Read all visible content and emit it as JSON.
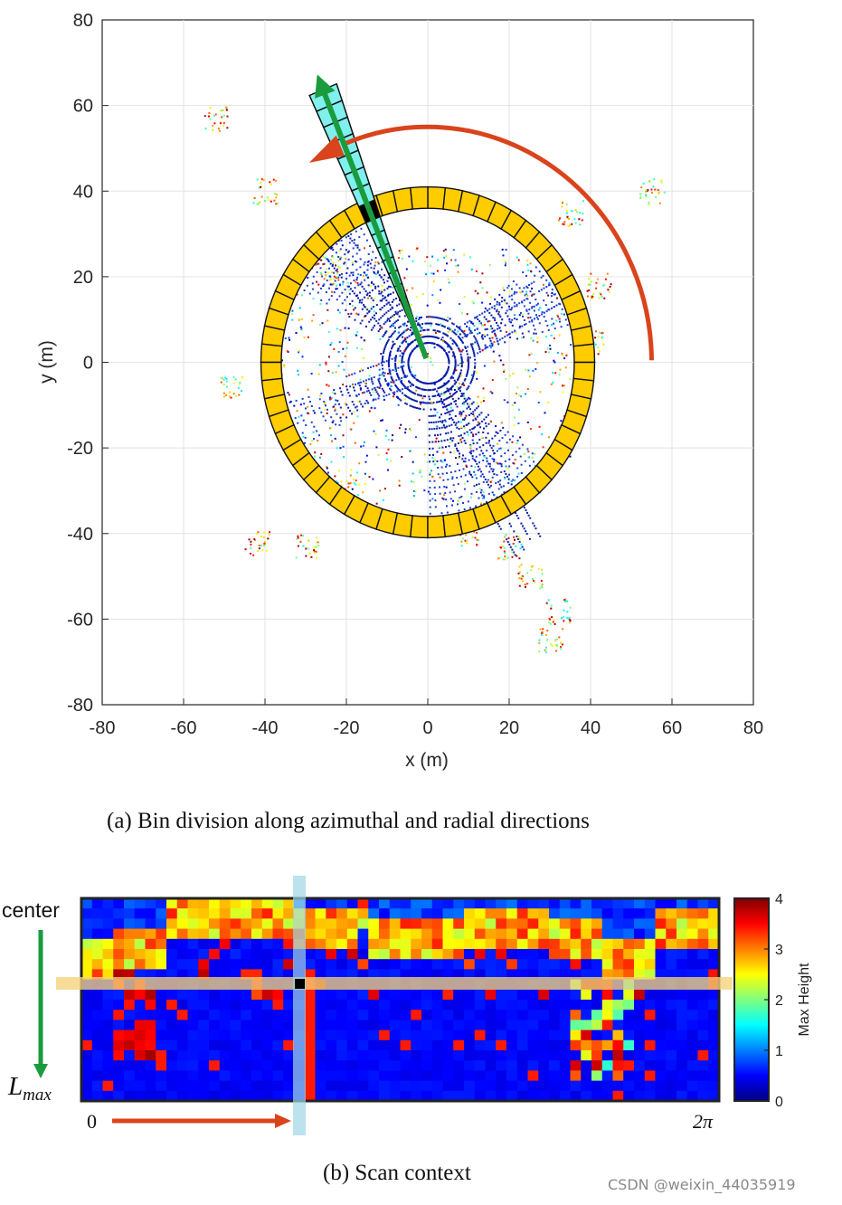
{
  "figure_a": {
    "caption": "(a) Bin division along azimuthal and radial directions",
    "chart_data": {
      "type": "scatter",
      "xlabel": "x (m)",
      "ylabel": "y (m)",
      "xlim": [
        -80,
        80
      ],
      "ylim": [
        -80,
        80
      ],
      "xticks": [
        "-80",
        "-60",
        "-40",
        "-20",
        "0",
        "20",
        "40",
        "60",
        "80"
      ],
      "yticks": [
        "80",
        "60",
        "40",
        "20",
        "0",
        "-20",
        "-40",
        "-60",
        "-80"
      ],
      "grid": true,
      "ring": {
        "inner_radius_m": 36,
        "outer_radius_m": 41,
        "sectors": 60,
        "color": "#ffcc00"
      },
      "sector_arrow_angle_deg": 112,
      "selected_bin_color": "#000000"
    }
  },
  "figure_b": {
    "caption": "(b) Scan context",
    "labels": {
      "center": "center",
      "lmax": "L",
      "lmax_sub": "max",
      "x_start": "0",
      "x_end": "2π"
    },
    "colorbar": {
      "label": "Max Height",
      "ticks": [
        "4",
        "3",
        "2",
        "1",
        "0"
      ],
      "range": [
        0,
        4
      ]
    },
    "chart_data": {
      "type": "heatmap",
      "rows": 20,
      "cols": 60,
      "xlabel_range": [
        "0",
        "2π"
      ],
      "ylabel_range": [
        "center",
        "Lmax"
      ],
      "value_label": "Max Height",
      "vmin": 0,
      "vmax": 4
    }
  },
  "watermark": "CSDN @weixin_44035919"
}
